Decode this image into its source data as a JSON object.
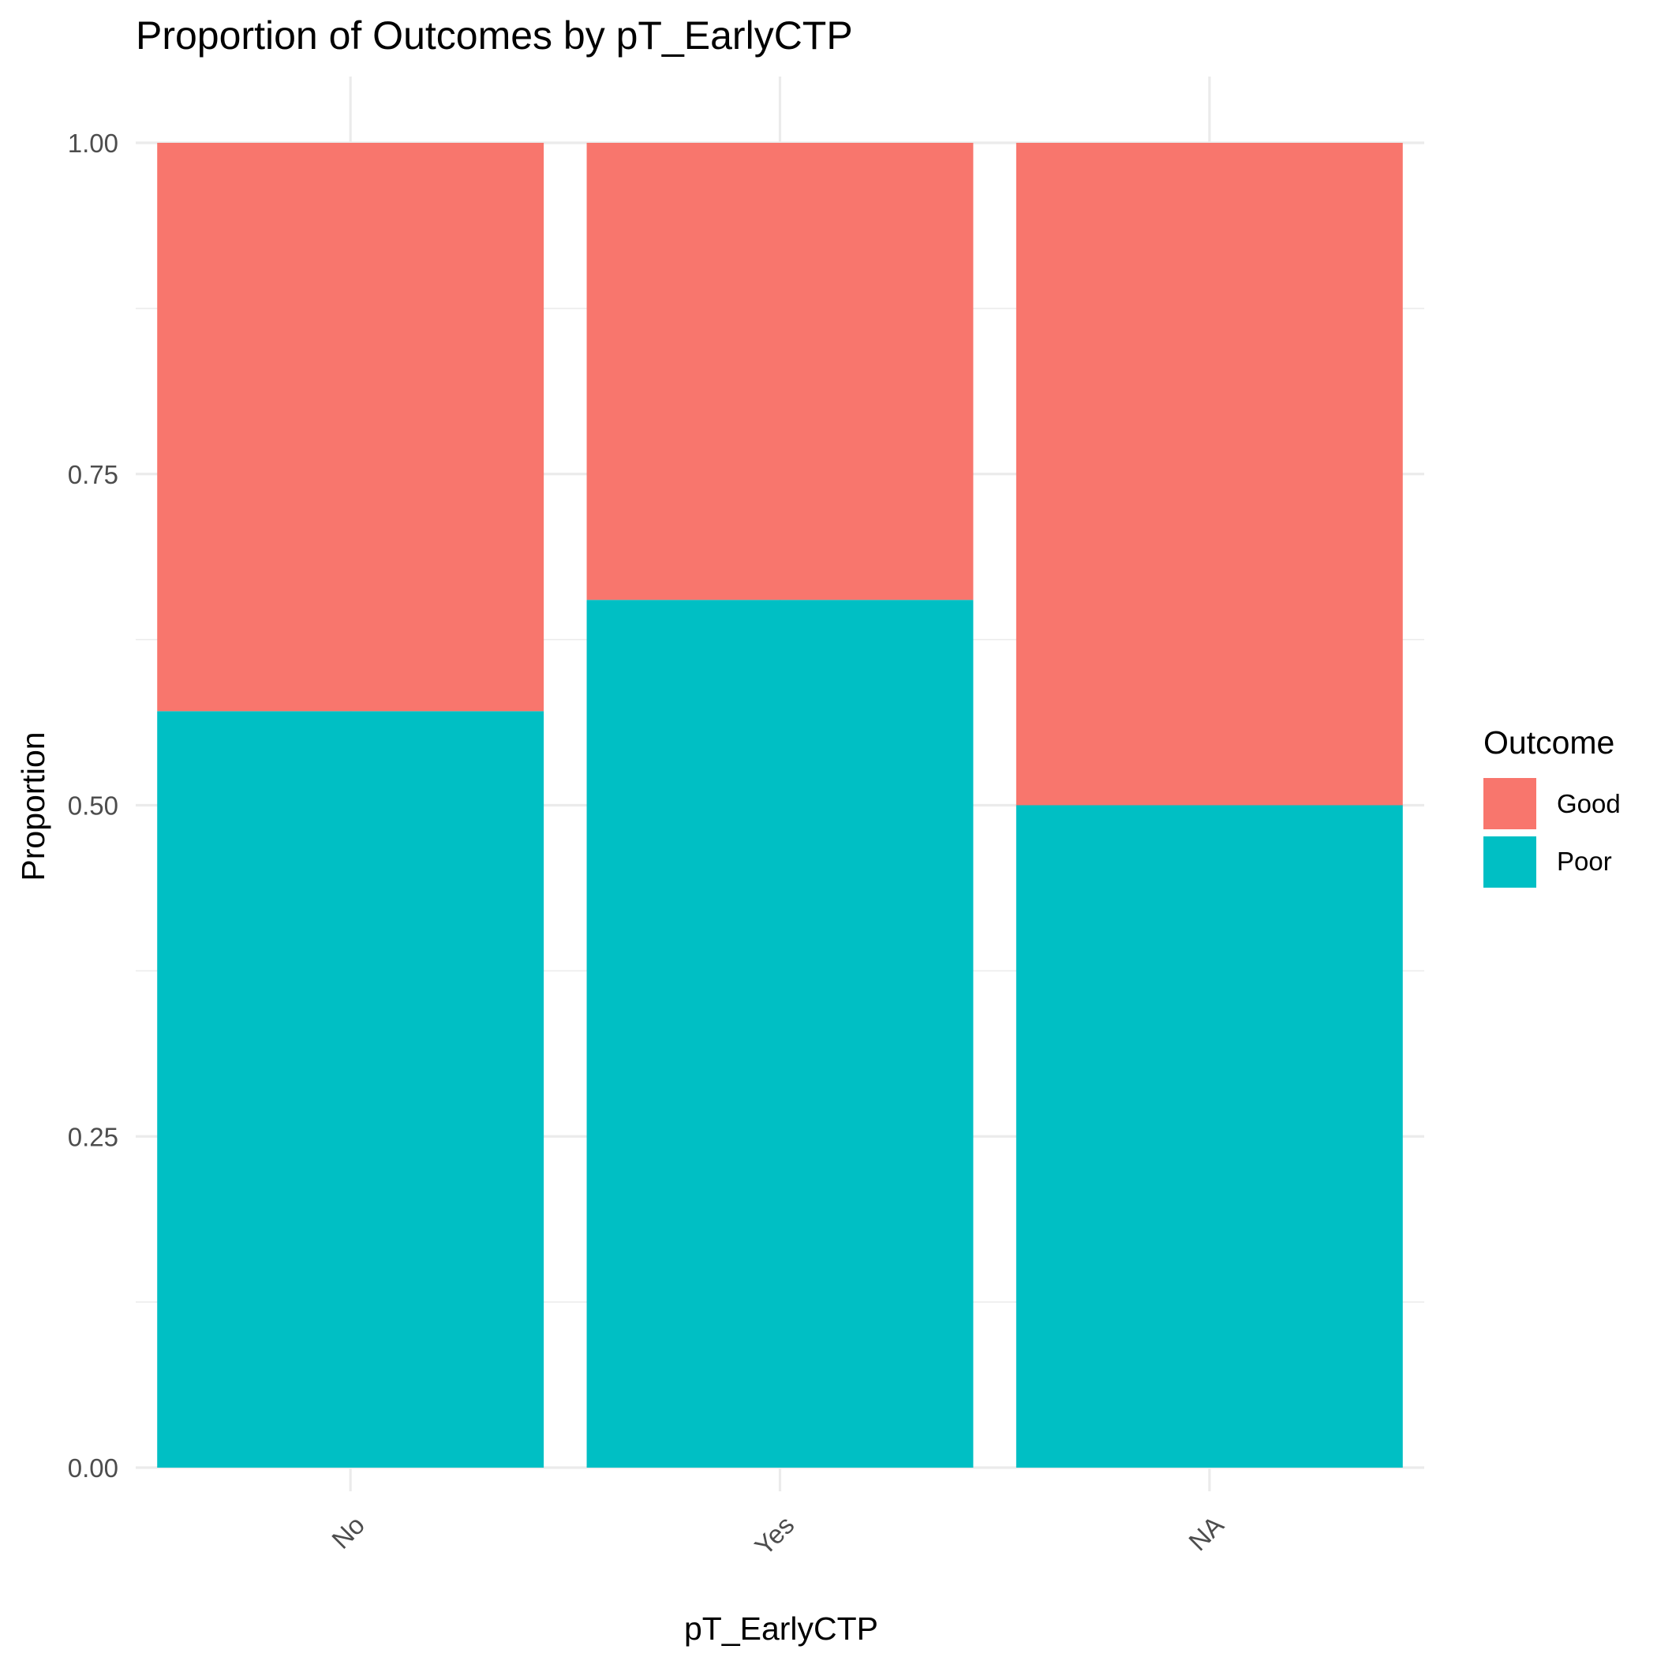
{
  "chart_data": {
    "type": "bar",
    "stacked": true,
    "title": "Proportion of Outcomes by pT_EarlyCTP",
    "xlabel": "pT_EarlyCTP",
    "ylabel": "Proportion",
    "categories": [
      "No",
      "Yes",
      "NA"
    ],
    "series": [
      {
        "name": "Poor",
        "color": "#00BFC4",
        "values": [
          0.571,
          0.655,
          0.5
        ]
      },
      {
        "name": "Good",
        "color": "#F8766D",
        "values": [
          0.429,
          0.345,
          0.5
        ]
      }
    ],
    "ylim": [
      0,
      1
    ],
    "yticks": [
      0,
      0.25,
      0.5,
      0.75,
      1
    ],
    "ytick_labels": [
      "0.00",
      "0.25",
      "0.50",
      "0.75",
      "1.00"
    ],
    "grid": true,
    "legend": {
      "title": "Outcome",
      "placement": "right",
      "entries": [
        {
          "label": "Good",
          "color": "#F8766D"
        },
        {
          "label": "Poor",
          "color": "#00BFC4"
        }
      ]
    }
  }
}
